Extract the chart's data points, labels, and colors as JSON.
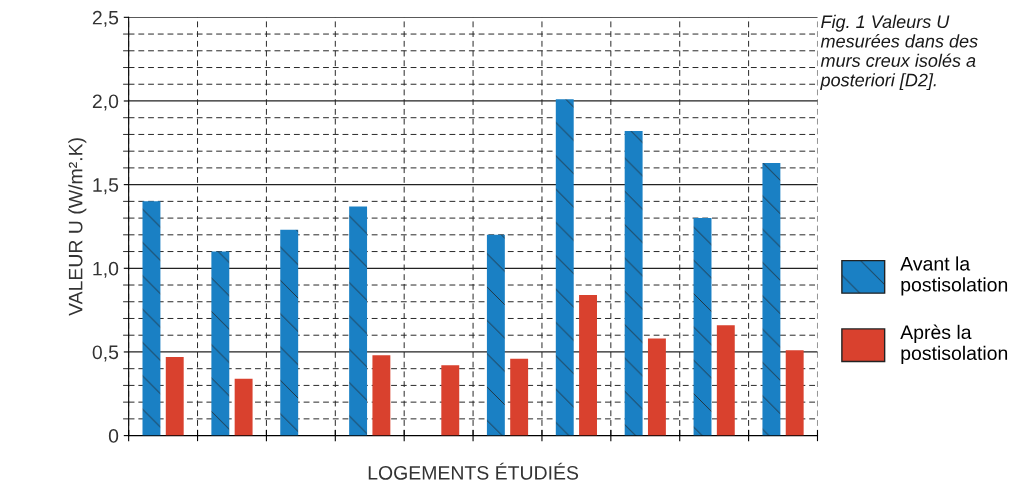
{
  "chart_data": {
    "type": "bar",
    "title": "Fig. 1 Valeurs U mesurées dans des murs creux isolés a posteriori [D2].",
    "xlabel": "LOGEMENTS ÉTUDIÉS",
    "ylabel": "VALEUR U (W/m².K)",
    "categories": [
      null,
      null,
      null,
      null,
      null,
      null,
      null,
      null,
      null,
      null
    ],
    "series": [
      {
        "name": "Avant la\npostisolation",
        "color": "#1a80c4",
        "values": [
          1.4,
          1.1,
          1.23,
          1.37,
          null,
          1.2,
          2.01,
          1.82,
          1.3,
          1.63
        ]
      },
      {
        "name": "Après la\npostisolation",
        "color": "#d9412e",
        "values": [
          0.47,
          0.34,
          null,
          0.48,
          0.42,
          0.46,
          0.84,
          0.58,
          0.66,
          0.51
        ]
      }
    ],
    "ylim": [
      0,
      2.5
    ],
    "yticks": [
      0,
      {
        "value": 0.5,
        "label": "0,5"
      },
      {
        "value": 1.0,
        "label": "1,0"
      },
      {
        "value": 1.5,
        "label": "1,5"
      },
      {
        "value": 2.0,
        "label": "2,0"
      },
      {
        "value": 2.5,
        "label": "2,5"
      }
    ],
    "grid": true,
    "legend": "right"
  }
}
